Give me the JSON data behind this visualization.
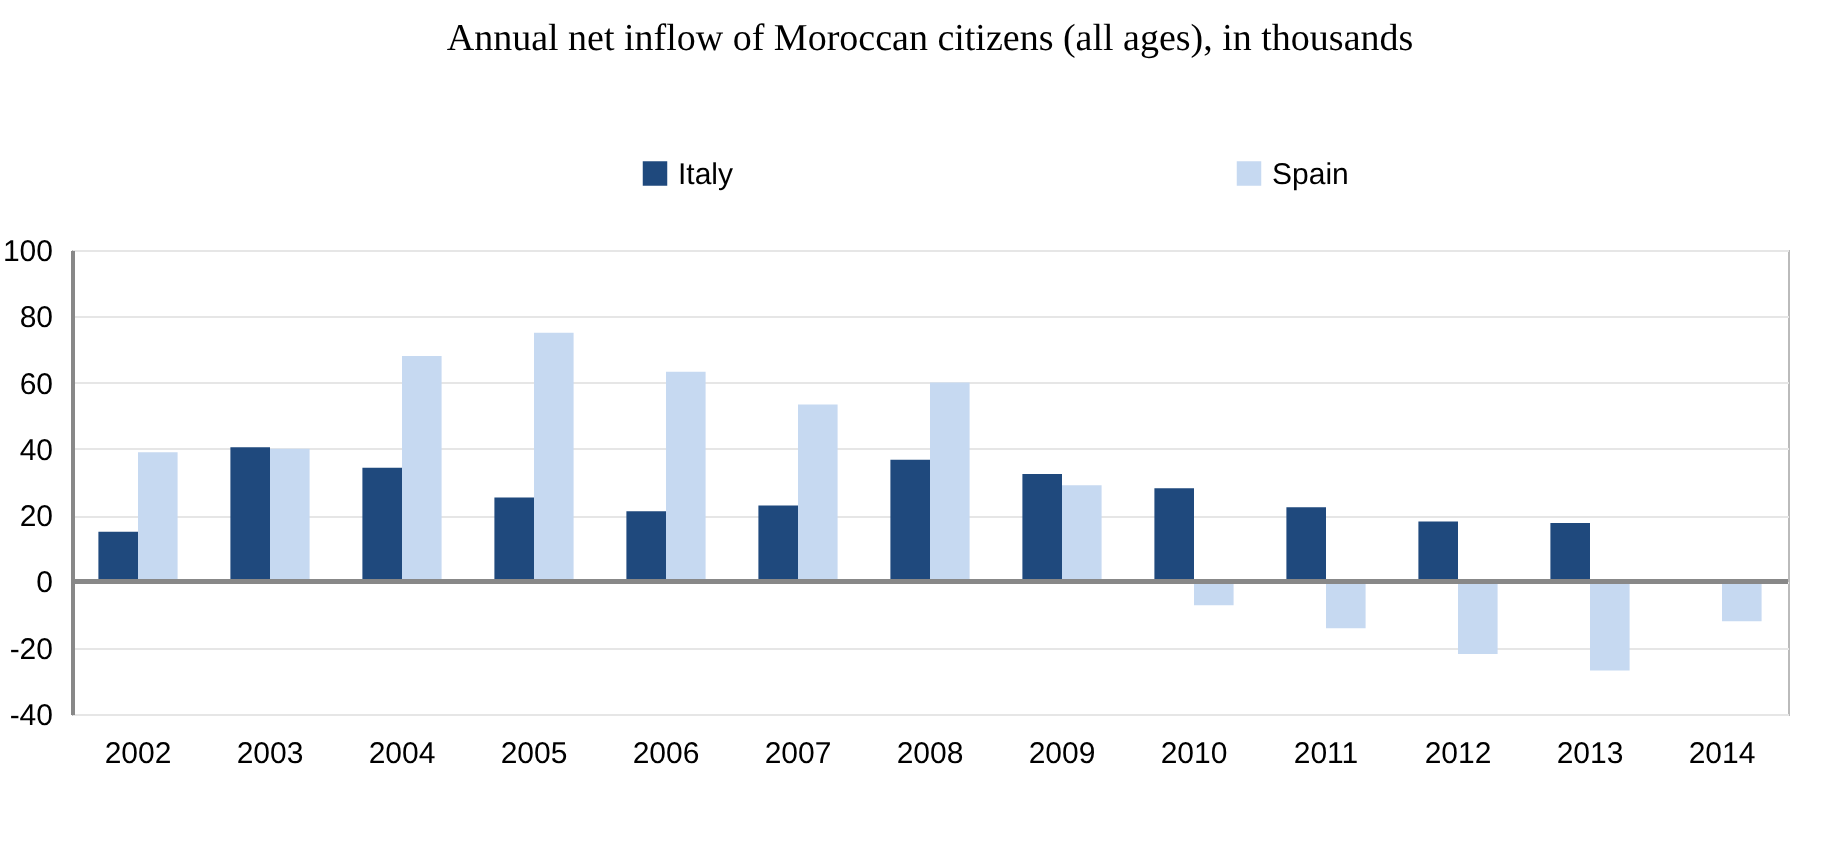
{
  "chart_data": {
    "type": "bar",
    "title": "Annual net inflow of Moroccan citizens (all ages), in thousands",
    "categories": [
      "2002",
      "2003",
      "2004",
      "2005",
      "2006",
      "2007",
      "2008",
      "2009",
      "2010",
      "2011",
      "2012",
      "2013",
      "2014"
    ],
    "series": [
      {
        "name": "Italy",
        "color": "#1f497d",
        "values": [
          15,
          40.5,
          34.3,
          25.3,
          21.2,
          22.9,
          36.7,
          32.4,
          28.1,
          22.4,
          18.1,
          17.6,
          null
        ]
      },
      {
        "name": "Spain",
        "color": "#c6d9f1",
        "values": [
          39,
          40,
          68,
          75,
          63.3,
          53.4,
          60,
          29,
          -7.2,
          -14.1,
          -21.9,
          -26.9,
          -12
        ]
      }
    ],
    "ylim": [
      -40,
      100
    ],
    "yticks": [
      -40,
      -20,
      0,
      20,
      40,
      60,
      80,
      100
    ],
    "grid": "y",
    "legend": "top"
  }
}
